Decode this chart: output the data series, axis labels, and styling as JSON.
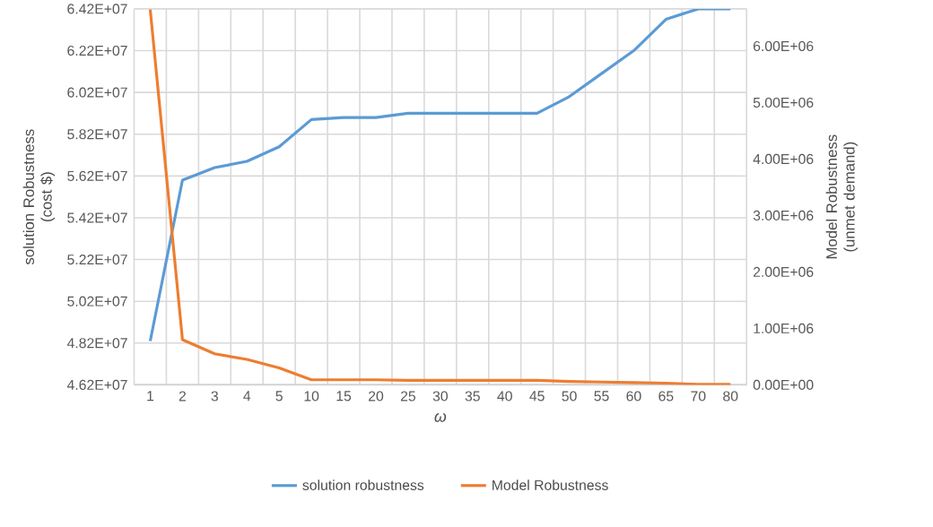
{
  "chart_data": {
    "type": "line",
    "xlabel": "ω",
    "ylabel": "solution Robustness (cost $)",
    "y2label": "Model Robustness (unmet demand)",
    "categories": [
      "1",
      "2",
      "3",
      "4",
      "5",
      "10",
      "15",
      "20",
      "25",
      "30",
      "35",
      "40",
      "45",
      "50",
      "55",
      "60",
      "65",
      "70",
      "80"
    ],
    "series": [
      {
        "name": "solution robustness",
        "color": "#5b9bd5",
        "values": [
          48300000,
          56000000,
          56600000,
          56900000,
          57600000,
          58900000,
          59000000,
          59000000,
          59200000,
          59200000,
          59200000,
          59200000,
          59200000,
          60000000,
          61100000,
          62200000,
          63700000,
          64200000,
          64200000
        ]
      },
      {
        "name": "Model Robustness",
        "color": "#ed7d31",
        "axis": "y2",
        "values": [
          6650000,
          800000,
          550000,
          450000,
          300000,
          90000,
          90000,
          90000,
          80000,
          80000,
          80000,
          80000,
          80000,
          60000,
          50000,
          40000,
          30000,
          10000,
          10000
        ]
      }
    ],
    "ylim": [
      46200000,
      64200000
    ],
    "yticks": [
      {
        "value": 46200000,
        "label": "4.62E+07"
      },
      {
        "value": 48200000,
        "label": "4.82E+07"
      },
      {
        "value": 50200000,
        "label": "5.02E+07"
      },
      {
        "value": 52200000,
        "label": "5.22E+07"
      },
      {
        "value": 54200000,
        "label": "5.42E+07"
      },
      {
        "value": 56200000,
        "label": "5.62E+07"
      },
      {
        "value": 58200000,
        "label": "5.82E+07"
      },
      {
        "value": 60200000,
        "label": "6.02E+07"
      },
      {
        "value": 62200000,
        "label": "6.22E+07"
      },
      {
        "value": 64200000,
        "label": "6.42E+07"
      }
    ],
    "y2lim": [
      0,
      6660000
    ],
    "y2ticks": [
      {
        "value": 0,
        "label": "0.00E+00"
      },
      {
        "value": 1000000,
        "label": "1.00E+06"
      },
      {
        "value": 2000000,
        "label": "2.00E+06"
      },
      {
        "value": 3000000,
        "label": "3.00E+06"
      },
      {
        "value": 4000000,
        "label": "4.00E+06"
      },
      {
        "value": 5000000,
        "label": "5.00E+06"
      },
      {
        "value": 6000000,
        "label": "6.00E+06"
      }
    ],
    "grid": true,
    "legend": "bottom",
    "marker": "none",
    "line_style": "solid"
  }
}
